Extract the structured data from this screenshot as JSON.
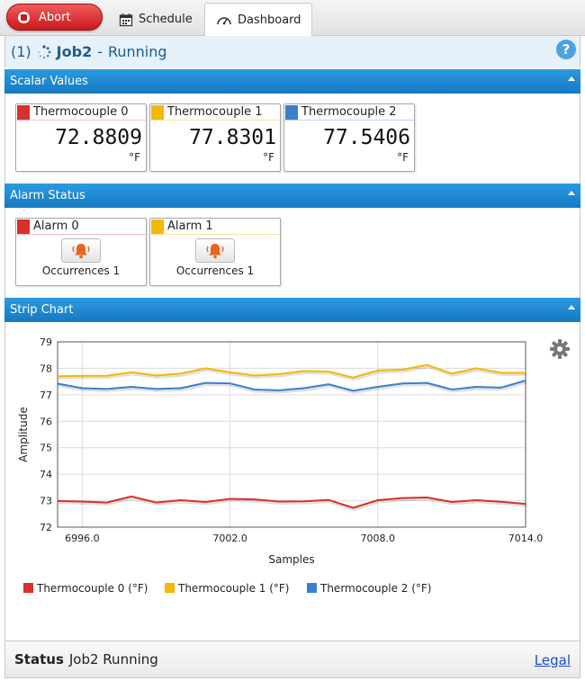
{
  "toolbar": {
    "abort_label": "Abort",
    "tabs": [
      {
        "label": "Schedule",
        "icon": "calendar-icon"
      },
      {
        "label": "Dashboard",
        "icon": "gauge-icon"
      }
    ]
  },
  "job": {
    "count": "(1)",
    "name": "Job2",
    "separator": "-",
    "state": "Running"
  },
  "sections": {
    "scalar": "Scalar Values",
    "alarm": "Alarm Status",
    "strip": "Strip Chart"
  },
  "scalars": [
    {
      "name": "Thermocouple 0",
      "value": "72.8809",
      "unit": "°F",
      "color": "#d9302b"
    },
    {
      "name": "Thermocouple 1",
      "value": "77.8301",
      "unit": "°F",
      "color": "#f5b800"
    },
    {
      "name": "Thermocouple 2",
      "value": "77.5406",
      "unit": "°F",
      "color": "#3a7fcf"
    }
  ],
  "alarms": [
    {
      "name": "Alarm 0",
      "occurrences": "Occurrences 1",
      "color": "#d9302b"
    },
    {
      "name": "Alarm 1",
      "occurrences": "Occurrences 1",
      "color": "#f5b800"
    }
  ],
  "chart_data": {
    "type": "line",
    "xlabel": "Samples",
    "ylabel": "Amplitude",
    "xlim": [
      6995,
      7014
    ],
    "ylim": [
      72,
      79
    ],
    "x_ticks": [
      "6996.0",
      "7002.0",
      "7008.0",
      "7014.0"
    ],
    "x_tick_values": [
      6996,
      7002,
      7008,
      7014
    ],
    "y_ticks": [
      "72",
      "73",
      "74",
      "75",
      "76",
      "77",
      "78",
      "79"
    ],
    "grid": true,
    "legend_position": "bottom",
    "x": [
      6995,
      6996,
      6997,
      6998,
      6999,
      7000,
      7001,
      7002,
      7003,
      7004,
      7005,
      7006,
      7007,
      7008,
      7009,
      7010,
      7011,
      7012,
      7013,
      7014
    ],
    "series": [
      {
        "name": "Thermocouple 0 (°F)",
        "color": "#d9302b",
        "values": [
          72.99,
          72.97,
          72.93,
          73.16,
          72.93,
          73.02,
          72.95,
          73.07,
          73.05,
          72.97,
          72.98,
          73.03,
          72.73,
          73.02,
          73.1,
          73.12,
          72.95,
          73.02,
          72.96,
          72.88
        ]
      },
      {
        "name": "Thermocouple 1 (°F)",
        "color": "#f5b800",
        "values": [
          77.7,
          77.72,
          77.72,
          77.85,
          77.73,
          77.8,
          78.0,
          77.85,
          77.73,
          77.78,
          77.9,
          77.88,
          77.65,
          77.92,
          77.95,
          78.13,
          77.8,
          78.0,
          77.83,
          77.83
        ]
      },
      {
        "name": "Thermocouple 2 (°F)",
        "color": "#3a7fcf",
        "values": [
          77.42,
          77.25,
          77.22,
          77.3,
          77.22,
          77.25,
          77.45,
          77.43,
          77.2,
          77.17,
          77.25,
          77.4,
          77.15,
          77.3,
          77.43,
          77.45,
          77.2,
          77.3,
          77.27,
          77.54
        ]
      }
    ]
  },
  "status": {
    "label": "Status",
    "text": "Job2 Running",
    "legal": "Legal"
  }
}
